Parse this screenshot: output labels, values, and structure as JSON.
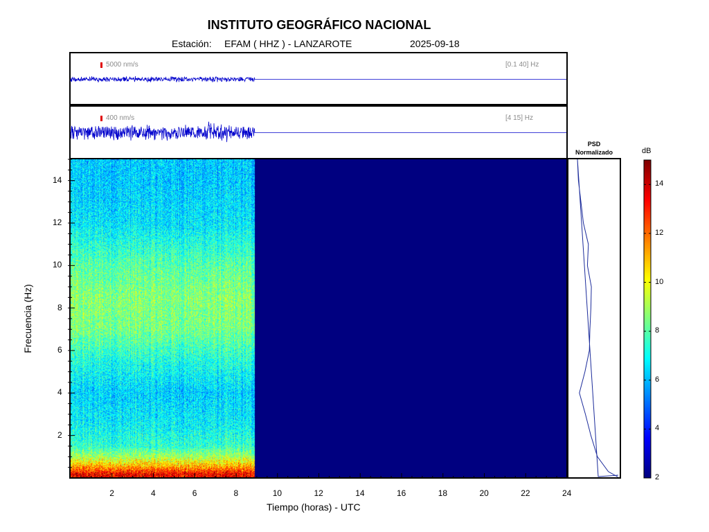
{
  "header": {
    "title": "INSTITUTO GEOGRÁFICO NACIONAL",
    "station_label": "Estación:",
    "station": "EFAM ( HHZ ) - LANZAROTE",
    "date": "2025-09-18"
  },
  "traces": [
    {
      "scale_label": "5000 nm/s",
      "band_label": "[0.1 40] Hz",
      "color": "#0000cc"
    },
    {
      "scale_label": "400 nm/s",
      "band_label": "[4 15] Hz",
      "color": "#0000cc"
    }
  ],
  "psd": {
    "title_line1": "PSD",
    "title_line2": "Normalizado"
  },
  "colorbar": {
    "unit": "dB",
    "ticks": [
      "2",
      "4",
      "6",
      "8",
      "10",
      "12",
      "14"
    ],
    "range": [
      2,
      15
    ],
    "colormap": "jet"
  },
  "chart_data": {
    "type": "heatmap",
    "xlabel": "Tiempo (horas) - UTC",
    "ylabel": "Frecuencia  (Hz)",
    "xlim": [
      0,
      24
    ],
    "ylim": [
      0,
      15
    ],
    "x_ticks": [
      "2",
      "4",
      "6",
      "8",
      "10",
      "12",
      "14",
      "16",
      "18",
      "20",
      "22",
      "24"
    ],
    "y_ticks": [
      "2",
      "4",
      "6",
      "8",
      "10",
      "12",
      "14"
    ],
    "data_end_hour": 8.9,
    "background_db": 2,
    "spectral_profile_db": [
      {
        "f": 0.2,
        "db": 13.5
      },
      {
        "f": 0.5,
        "db": 11.5
      },
      {
        "f": 1.0,
        "db": 9.0
      },
      {
        "f": 1.5,
        "db": 7.5
      },
      {
        "f": 2.5,
        "db": 6.8
      },
      {
        "f": 4.0,
        "db": 6.3
      },
      {
        "f": 5.5,
        "db": 7.2
      },
      {
        "f": 7.0,
        "db": 8.4
      },
      {
        "f": 8.5,
        "db": 8.6
      },
      {
        "f": 10.0,
        "db": 8.0
      },
      {
        "f": 12.0,
        "db": 6.6
      },
      {
        "f": 14.0,
        "db": 6.2
      },
      {
        "f": 15.0,
        "db": 6.2
      }
    ],
    "psd_profile": [
      {
        "f": 0.05,
        "v": 0.99
      },
      {
        "f": 0.3,
        "v": 0.8
      },
      {
        "f": 1.0,
        "v": 0.58
      },
      {
        "f": 2.0,
        "v": 0.45
      },
      {
        "f": 3.0,
        "v": 0.34
      },
      {
        "f": 4.0,
        "v": 0.22
      },
      {
        "f": 5.0,
        "v": 0.33
      },
      {
        "f": 6.0,
        "v": 0.42
      },
      {
        "f": 7.0,
        "v": 0.43
      },
      {
        "f": 8.0,
        "v": 0.45
      },
      {
        "f": 9.0,
        "v": 0.46
      },
      {
        "f": 10.0,
        "v": 0.38
      },
      {
        "f": 11.0,
        "v": 0.4
      },
      {
        "f": 12.0,
        "v": 0.3
      },
      {
        "f": 13.0,
        "v": 0.25
      },
      {
        "f": 14.0,
        "v": 0.2
      },
      {
        "f": 15.0,
        "v": 0.18
      }
    ]
  }
}
